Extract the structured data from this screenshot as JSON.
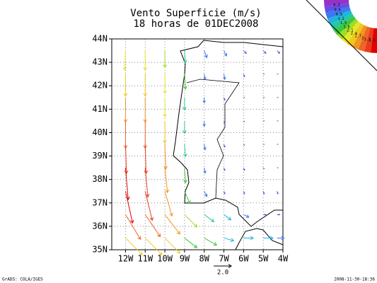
{
  "chart_data": {
    "type": "vector_map",
    "title": "Vento Superficie (m/s)",
    "subtitle": "18 horas de 01DEC2008",
    "xlim": [
      -12.7,
      -4
    ],
    "ylim": [
      35,
      44
    ],
    "xticks": [
      {
        "value": -12,
        "label": "12W"
      },
      {
        "value": -11,
        "label": "11W"
      },
      {
        "value": -10,
        "label": "10W"
      },
      {
        "value": -9,
        "label": "9W"
      },
      {
        "value": -8,
        "label": "8W"
      },
      {
        "value": -7,
        "label": "7W"
      },
      {
        "value": -6,
        "label": "6W"
      },
      {
        "value": -5,
        "label": "5W"
      },
      {
        "value": -4,
        "label": "4W"
      }
    ],
    "yticks": [
      {
        "value": 35,
        "label": "35N"
      },
      {
        "value": 36,
        "label": "36N"
      },
      {
        "value": 37,
        "label": "37N"
      },
      {
        "value": 38,
        "label": "38N"
      },
      {
        "value": 39,
        "label": "39N"
      },
      {
        "value": 40,
        "label": "40N"
      },
      {
        "value": 41,
        "label": "41N"
      },
      {
        "value": 42,
        "label": "42N"
      },
      {
        "value": 43,
        "label": "43N"
      },
      {
        "value": 44,
        "label": "44N"
      }
    ],
    "grid": true,
    "lons": [
      -12,
      -11,
      -10,
      -9,
      -8,
      -7,
      -6,
      -5,
      -4.3
    ],
    "lats": [
      43.5,
      42.5,
      41.5,
      40.5,
      39.5,
      38.5,
      37.5,
      36.5,
      35.5
    ],
    "u": [
      [
        -0.1,
        0,
        0,
        0.1,
        0.3,
        0.3,
        0.3,
        0.3,
        0.3
      ],
      [
        0,
        0,
        0,
        0.1,
        0.1,
        0.1,
        0.1,
        0.1,
        0.1
      ],
      [
        0,
        0,
        0,
        0,
        0,
        0.1,
        0.1,
        0.1,
        0.1
      ],
      [
        0,
        0,
        0,
        0,
        0,
        0.1,
        0.1,
        0.1,
        0.1
      ],
      [
        0.1,
        0.1,
        0.1,
        0.1,
        0.1,
        0.1,
        0.1,
        0.1,
        0.1
      ],
      [
        0.3,
        0.3,
        0.3,
        0.1,
        0.1,
        0.1,
        0.1,
        0.1,
        0.1
      ],
      [
        0.8,
        0.8,
        0.8,
        0.6,
        0.3,
        0.1,
        0.1,
        0.1,
        0.1
      ],
      [
        1.7,
        1.7,
        1.7,
        1.4,
        1.1,
        0.8,
        0.6,
        0.3,
        0.3
      ],
      [
        1.9,
        1.9,
        1.7,
        1.4,
        1.4,
        1.1,
        1.1,
        1.1,
        0.8
      ]
    ],
    "v": [
      [
        -2.2,
        -2.2,
        -1.9,
        -1.4,
        -0.8,
        -0.6,
        -0.3,
        -0.3,
        -0.3
      ],
      [
        -2.5,
        -2.5,
        -2.2,
        -1.7,
        -0.6,
        -0.6,
        -0.3,
        0,
        0
      ],
      [
        -2.8,
        -2.8,
        -2.2,
        -1.4,
        -0.6,
        -0.3,
        0,
        0,
        0
      ],
      [
        -3.1,
        -3.1,
        -2.5,
        -1.4,
        -0.6,
        -0.3,
        -0.1,
        0,
        0
      ],
      [
        -3.3,
        -3.3,
        -2.8,
        -1.4,
        -0.6,
        -0.3,
        -0.1,
        0,
        0
      ],
      [
        -3.6,
        -3.3,
        -2.8,
        -1.7,
        -0.6,
        -0.3,
        -0.3,
        -0.1,
        0
      ],
      [
        -3.6,
        -3.3,
        -2.8,
        -1.4,
        -0.6,
        -0.3,
        -0.3,
        -0.3,
        -0.3
      ],
      [
        -2.8,
        -2.5,
        -2.2,
        -1.4,
        -0.8,
        -0.6,
        -0.3,
        0,
        0
      ],
      [
        -1.9,
        -1.9,
        -1.7,
        -1.1,
        -0.8,
        -0.3,
        0,
        0,
        0
      ]
    ],
    "ref_vector": {
      "value": 2,
      "label": "2.0"
    },
    "levels": [
      3.6,
      3.3,
      3.0,
      2.7,
      2.4,
      2.1,
      1.8,
      1.5,
      1.2,
      0.9,
      0.6,
      0.3
    ],
    "colors": [
      "#e00000",
      "#e83c1e",
      "#f06428",
      "#f0961e",
      "#f0c81e",
      "#e6e628",
      "#a0dc28",
      "#3cc83c",
      "#28c8a0",
      "#1eb4dc",
      "#3c78f0",
      "#6450e6",
      "#9632c8"
    ],
    "footer_left": "GrADS: COLA/IGES",
    "footer_right": "2008-11-30-18:36"
  }
}
